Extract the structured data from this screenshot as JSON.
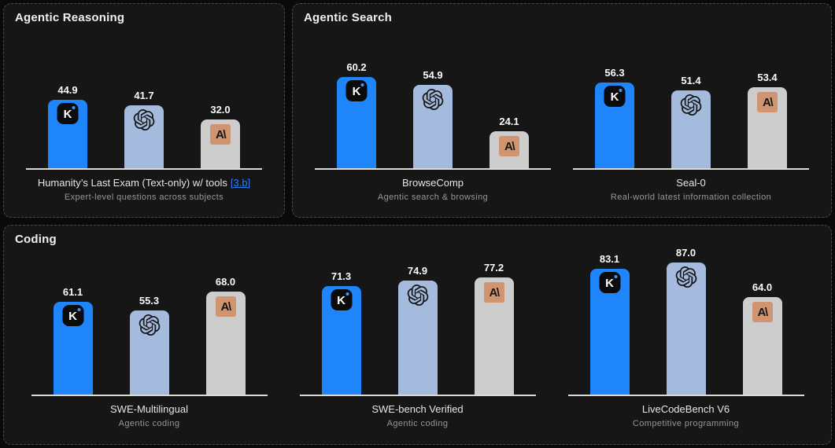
{
  "colors": {
    "page_bg": "#0a0a0b",
    "panel_bg": "#161616",
    "panel_border": "#4a4a4a",
    "kimi_bar": "#1e85fb",
    "openai_bar": "#a5bbde",
    "anthropic_bar": "#cdcdcd",
    "anthropic_logo_bg": "#d09470",
    "kimi_dot": "#3f97ff",
    "axis_line": "#d9d9d9",
    "value_label": "#fafafa",
    "benchmark_title": "#e6e6e6",
    "benchmark_subtitle": "#979797",
    "link": "#2d7ef7"
  },
  "icons": {
    "kimi_letter": "K",
    "anthropic_glyph": "A\\"
  },
  "chart_data": {
    "type": "bar",
    "ylim": [
      0,
      100
    ],
    "grid": false,
    "value_labels": true,
    "legend_position": "on-bar-icons",
    "legend": [
      {
        "icon": "kimi-logo",
        "color": "#1e85fb"
      },
      {
        "icon": "openai-logo",
        "color": "#a5bbde"
      },
      {
        "icon": "anthropic-logo",
        "color": "#cdcdcd"
      }
    ],
    "panels": [
      {
        "title": "Agentic Reasoning",
        "charts": [
          {
            "title": "Humanity’s Last Exam (Text-only) w/ tools",
            "link": "[3.b]",
            "subtitle": "Expert-level questions across subjects",
            "values": [
              44.9,
              41.7,
              32.0
            ]
          }
        ]
      },
      {
        "title": "Agentic Search",
        "charts": [
          {
            "title": "BrowseComp",
            "subtitle": "Agentic search & browsing",
            "values": [
              60.2,
              54.9,
              24.1
            ]
          },
          {
            "title": "Seal-0",
            "subtitle": "Real-world latest information collection",
            "values": [
              56.3,
              51.4,
              53.4
            ]
          }
        ]
      },
      {
        "title": "Coding",
        "charts": [
          {
            "title": "SWE-Multilingual",
            "subtitle": "Agentic coding",
            "values": [
              61.1,
              55.3,
              68.0
            ]
          },
          {
            "title": "SWE-bench Verified",
            "subtitle": "Agentic coding",
            "values": [
              71.3,
              74.9,
              77.2
            ]
          },
          {
            "title": "LiveCodeBench V6",
            "subtitle": "Competitive programming",
            "values": [
              83.1,
              87.0,
              64.0
            ]
          }
        ]
      }
    ]
  }
}
